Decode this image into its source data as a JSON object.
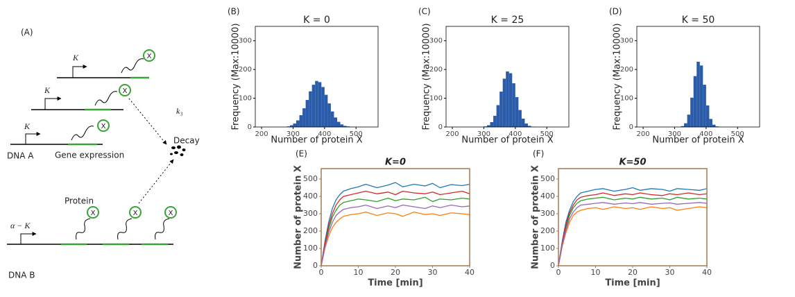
{
  "diagram": {
    "panel": "(A)",
    "promoter_labels": [
      "K",
      "K",
      "K",
      "α − K"
    ],
    "proteins": [
      "X",
      "X",
      "X",
      "X",
      "X",
      "X"
    ],
    "rate": "k₃",
    "decay": "Decay",
    "dna_a": "DNA A",
    "gene_expression": "Gene expression",
    "protein": "Protein",
    "dna_b": "DNA B"
  },
  "chart_data": [
    {
      "type": "histogram",
      "label": "(B)",
      "title": "K = 0",
      "xlabel": "Number of protein X",
      "ylabel": "Frequency (Max:10000)",
      "color": "#2a5caa",
      "bins": [
        280,
        290,
        300,
        310,
        320,
        330,
        340,
        350,
        360,
        370,
        380,
        390,
        400,
        410,
        420,
        430,
        440,
        450,
        460,
        470,
        480,
        490
      ],
      "values": [
        2,
        6,
        12,
        23,
        41,
        65,
        94,
        124,
        147,
        160,
        156,
        139,
        112,
        82,
        54,
        33,
        18,
        9,
        4,
        2,
        1
      ],
      "xlim": [
        180,
        570
      ],
      "ylim": [
        0,
        350
      ],
      "xticks": [
        200,
        300,
        400,
        500
      ],
      "yticks": [
        0,
        100,
        200,
        300
      ]
    },
    {
      "type": "histogram",
      "label": "(C)",
      "title": "K = 25",
      "xlabel": "Number of protein X",
      "ylabel": "Frequency (Max:10000)",
      "color": "#2a5caa",
      "bins": [
        280,
        290,
        300,
        310,
        320,
        330,
        340,
        350,
        360,
        370,
        380,
        390,
        400,
        410,
        420,
        430,
        440,
        450,
        460,
        470,
        480,
        490
      ],
      "values": [
        0,
        0,
        2,
        6,
        17,
        39,
        76,
        123,
        168,
        193,
        187,
        152,
        104,
        59,
        29,
        12,
        4,
        1,
        0,
        0,
        0
      ],
      "xlim": [
        180,
        570
      ],
      "ylim": [
        0,
        350
      ],
      "xticks": [
        200,
        300,
        400,
        500
      ],
      "yticks": [
        0,
        100,
        200,
        300
      ]
    },
    {
      "type": "histogram",
      "label": "(D)",
      "title": "K = 50",
      "xlabel": "Number of protein X",
      "ylabel": "Frequency (Max:10000)",
      "color": "#2a5caa",
      "bins": [
        280,
        290,
        300,
        310,
        320,
        330,
        340,
        350,
        360,
        370,
        380,
        390,
        400,
        410,
        420,
        430,
        440,
        450,
        460,
        470,
        480,
        490
      ],
      "values": [
        0,
        0,
        0,
        0,
        3,
        13,
        43,
        102,
        177,
        227,
        214,
        147,
        75,
        28,
        8,
        2,
        0,
        0,
        0,
        0,
        0
      ],
      "xlim": [
        180,
        570
      ],
      "ylim": [
        0,
        350
      ],
      "xticks": [
        200,
        300,
        400,
        500
      ],
      "yticks": [
        0,
        100,
        200,
        300
      ]
    },
    {
      "type": "line",
      "label": "(E)",
      "title": "K=0",
      "xlabel": "Time [min]",
      "ylabel": "Number of protein X",
      "x": [
        0,
        1,
        2,
        3,
        4,
        5,
        6,
        8,
        10,
        12,
        15,
        18,
        20,
        22,
        25,
        28,
        30,
        32,
        35,
        38,
        40
      ],
      "series": [
        {
          "color": "#1f77b4",
          "values": [
            0,
            140,
            250,
            330,
            380,
            410,
            430,
            445,
            455,
            470,
            450,
            465,
            480,
            455,
            470,
            460,
            475,
            450,
            468,
            462,
            470
          ]
        },
        {
          "color": "#ff7f0e",
          "values": [
            0,
            100,
            170,
            220,
            250,
            270,
            285,
            295,
            300,
            310,
            290,
            305,
            300,
            285,
            310,
            295,
            300,
            290,
            305,
            300,
            295
          ]
        },
        {
          "color": "#2ca02c",
          "values": [
            0,
            120,
            210,
            280,
            320,
            350,
            365,
            375,
            385,
            380,
            370,
            390,
            375,
            385,
            380,
            395,
            370,
            385,
            380,
            390,
            385
          ]
        },
        {
          "color": "#d62728",
          "values": [
            0,
            130,
            230,
            300,
            350,
            380,
            400,
            410,
            420,
            430,
            415,
            425,
            410,
            430,
            420,
            415,
            425,
            410,
            420,
            430,
            415
          ]
        },
        {
          "color": "#9467bd",
          "values": [
            0,
            110,
            190,
            250,
            290,
            310,
            325,
            335,
            340,
            350,
            330,
            345,
            335,
            350,
            340,
            330,
            345,
            335,
            350,
            340,
            345
          ]
        }
      ],
      "xlim": [
        0,
        40
      ],
      "ylim": [
        0,
        560
      ],
      "xticks": [
        0,
        10,
        20,
        30,
        40
      ],
      "yticks": [
        0,
        100,
        200,
        300,
        400,
        500
      ]
    },
    {
      "type": "line",
      "label": "(F)",
      "title": "K=50",
      "xlabel": "Time [min]",
      "ylabel": "Number of protein X",
      "x": [
        0,
        1,
        2,
        3,
        4,
        5,
        6,
        8,
        10,
        12,
        15,
        18,
        20,
        22,
        25,
        28,
        30,
        32,
        35,
        38,
        40
      ],
      "series": [
        {
          "color": "#1f77b4",
          "values": [
            0,
            140,
            250,
            320,
            370,
            400,
            420,
            430,
            440,
            445,
            430,
            440,
            450,
            435,
            445,
            440,
            430,
            445,
            440,
            435,
            445
          ]
        },
        {
          "color": "#ff7f0e",
          "values": [
            0,
            110,
            190,
            250,
            290,
            310,
            320,
            330,
            335,
            325,
            340,
            330,
            335,
            325,
            340,
            330,
            335,
            320,
            330,
            340,
            335
          ]
        },
        {
          "color": "#2ca02c",
          "values": [
            0,
            125,
            220,
            290,
            335,
            360,
            375,
            385,
            390,
            395,
            380,
            390,
            385,
            395,
            385,
            390,
            380,
            395,
            385,
            390,
            385
          ]
        },
        {
          "color": "#d62728",
          "values": [
            0,
            130,
            235,
            305,
            350,
            380,
            395,
            405,
            410,
            420,
            405,
            415,
            410,
            420,
            410,
            405,
            415,
            410,
            420,
            410,
            415
          ]
        },
        {
          "color": "#9467bd",
          "values": [
            0,
            118,
            205,
            270,
            310,
            335,
            350,
            355,
            360,
            365,
            355,
            362,
            358,
            365,
            355,
            360,
            362,
            355,
            360,
            365,
            360
          ]
        }
      ],
      "xlim": [
        0,
        40
      ],
      "ylim": [
        0,
        560
      ],
      "xticks": [
        0,
        10,
        20,
        30,
        40
      ],
      "yticks": [
        0,
        100,
        200,
        300,
        400,
        500
      ]
    }
  ]
}
